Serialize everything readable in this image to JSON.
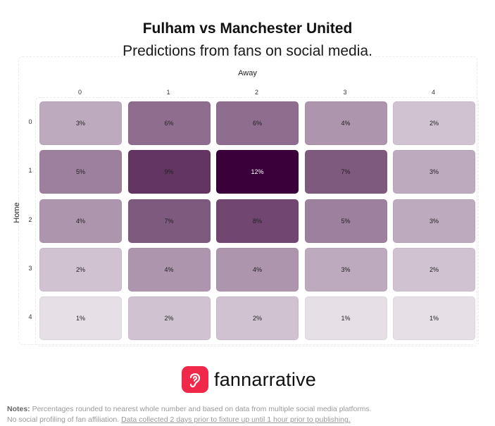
{
  "header": {
    "title": "Fulham vs Manchester United",
    "subtitle": "Predictions from fans on social media."
  },
  "footer": {
    "brand": "fannarrative",
    "notes_label": "Notes:",
    "notes_line1": "Percentages rounded to nearest whole number and based on data from multiple social media platforms.",
    "notes_line2_plain": "No social profiling of fan affiliation.",
    "notes_line2_link": "Data collected 2 days prior to fixture up until 1 hour prior to publishing."
  },
  "chart_data": {
    "type": "heatmap",
    "title": "Fulham vs Manchester United",
    "subtitle": "Predictions from fans on social media.",
    "xlabel": "Away",
    "ylabel": "Home",
    "x_categories": [
      "0",
      "1",
      "2",
      "3",
      "4"
    ],
    "y_categories": [
      "0",
      "1",
      "2",
      "3",
      "4"
    ],
    "values": [
      [
        3,
        6,
        6,
        4,
        2
      ],
      [
        5,
        9,
        12,
        7,
        3
      ],
      [
        4,
        7,
        8,
        5,
        3
      ],
      [
        2,
        4,
        4,
        3,
        2
      ],
      [
        1,
        2,
        2,
        1,
        1
      ]
    ],
    "value_labels": [
      [
        "3%",
        "6%",
        "6%",
        "4%",
        "2%"
      ],
      [
        "5%",
        "9%",
        "12%",
        "7%",
        "3%"
      ],
      [
        "4%",
        "7%",
        "8%",
        "5%",
        "3%"
      ],
      [
        "2%",
        "4%",
        "4%",
        "3%",
        "2%"
      ],
      [
        "1%",
        "2%",
        "2%",
        "1%",
        "1%"
      ]
    ],
    "color_scale": {
      "low": "#f5f2f5",
      "high": "#3a003a"
    }
  }
}
